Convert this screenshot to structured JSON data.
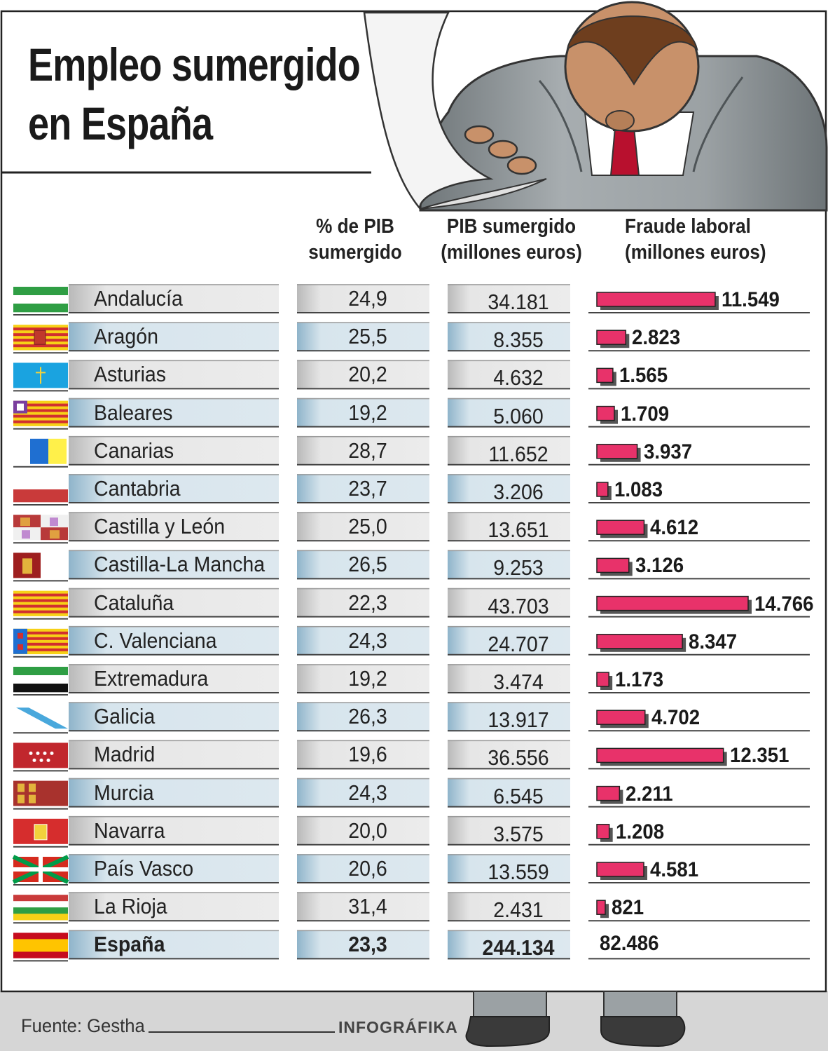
{
  "chart_data": {
    "type": "table",
    "title": "Empleo sumergido en España",
    "title_lines": [
      "Empleo sumergido",
      "en España"
    ],
    "columns": [
      {
        "key": "pct",
        "header_lines": [
          "% de PIB",
          "sumergido"
        ]
      },
      {
        "key": "pib",
        "header_lines": [
          "PIB sumergido",
          "(millones euros)"
        ]
      },
      {
        "key": "fraude",
        "header_lines": [
          "Fraude laboral",
          "(millones euros)"
        ],
        "shown_as": "bar"
      }
    ],
    "rows": [
      {
        "region": "Andalucía",
        "pct": "24,9",
        "pib": "34.181",
        "fraude": "11.549",
        "fraude_value": 11549,
        "flag": "andalucia-flag-icon"
      },
      {
        "region": "Aragón",
        "pct": "25,5",
        "pib": "8.355",
        "fraude": "2.823",
        "fraude_value": 2823,
        "flag": "aragon-flag-icon"
      },
      {
        "region": "Asturias",
        "pct": "20,2",
        "pib": "4.632",
        "fraude": "1.565",
        "fraude_value": 1565,
        "flag": "asturias-flag-icon"
      },
      {
        "region": "Baleares",
        "pct": "19,2",
        "pib": "5.060",
        "fraude": "1.709",
        "fraude_value": 1709,
        "flag": "baleares-flag-icon"
      },
      {
        "region": "Canarias",
        "pct": "28,7",
        "pib": "11.652",
        "fraude": "3.937",
        "fraude_value": 3937,
        "flag": "canarias-flag-icon"
      },
      {
        "region": "Cantabria",
        "pct": "23,7",
        "pib": "3.206",
        "fraude": "1.083",
        "fraude_value": 1083,
        "flag": "cantabria-flag-icon"
      },
      {
        "region": "Castilla y León",
        "pct": "25,0",
        "pib": "13.651",
        "fraude": "4.612",
        "fraude_value": 4612,
        "flag": "castilla-leon-flag-icon"
      },
      {
        "region": "Castilla-La Mancha",
        "pct": "26,5",
        "pib": "9.253",
        "fraude": "3.126",
        "fraude_value": 3126,
        "flag": "castilla-la-mancha-flag-icon"
      },
      {
        "region": "Cataluña",
        "pct": "22,3",
        "pib": "43.703",
        "fraude": "14.766",
        "fraude_value": 14766,
        "flag": "cataluna-flag-icon"
      },
      {
        "region": "C. Valenciana",
        "pct": "24,3",
        "pib": "24.707",
        "fraude": "8.347",
        "fraude_value": 8347,
        "flag": "valenciana-flag-icon"
      },
      {
        "region": "Extremadura",
        "pct": "19,2",
        "pib": "3.474",
        "fraude": "1.173",
        "fraude_value": 1173,
        "flag": "extremadura-flag-icon"
      },
      {
        "region": "Galicia",
        "pct": "26,3",
        "pib": "13.917",
        "fraude": "4.702",
        "fraude_value": 4702,
        "flag": "galicia-flag-icon"
      },
      {
        "region": "Madrid",
        "pct": "19,6",
        "pib": "36.556",
        "fraude": "12.351",
        "fraude_value": 12351,
        "flag": "madrid-flag-icon"
      },
      {
        "region": "Murcia",
        "pct": "24,3",
        "pib": "6.545",
        "fraude": "2.211",
        "fraude_value": 2211,
        "flag": "murcia-flag-icon"
      },
      {
        "region": "Navarra",
        "pct": "20,0",
        "pib": "3.575",
        "fraude": "1.208",
        "fraude_value": 1208,
        "flag": "navarra-flag-icon"
      },
      {
        "region": "País Vasco",
        "pct": "20,6",
        "pib": "13.559",
        "fraude": "4.581",
        "fraude_value": 4581,
        "flag": "pais-vasco-flag-icon"
      },
      {
        "region": "La Rioja",
        "pct": "31,4",
        "pib": "2.431",
        "fraude": "821",
        "fraude_value": 821,
        "flag": "la-rioja-flag-icon"
      }
    ],
    "total": {
      "region": "España",
      "pct": "23,3",
      "pib": "244.134",
      "fraude": "82.486",
      "flag": "espana-flag-icon"
    },
    "bar_max": 14766
  },
  "footer": {
    "source": "Fuente: Gestha",
    "credit": "INFOGRÁFIKA"
  },
  "colors": {
    "bar": "#e8326a",
    "shadow": "#555555",
    "cell_gray": "#e9e9e9",
    "cell_blue": "#dbe7ee",
    "cell_edge_gray": "#b5b5b5",
    "cell_edge_blue": "#8cb2c8",
    "suit": "#9aa0a3",
    "frame": "#222222"
  },
  "illustration": {
    "name": "bowing-businessman-illustration"
  }
}
